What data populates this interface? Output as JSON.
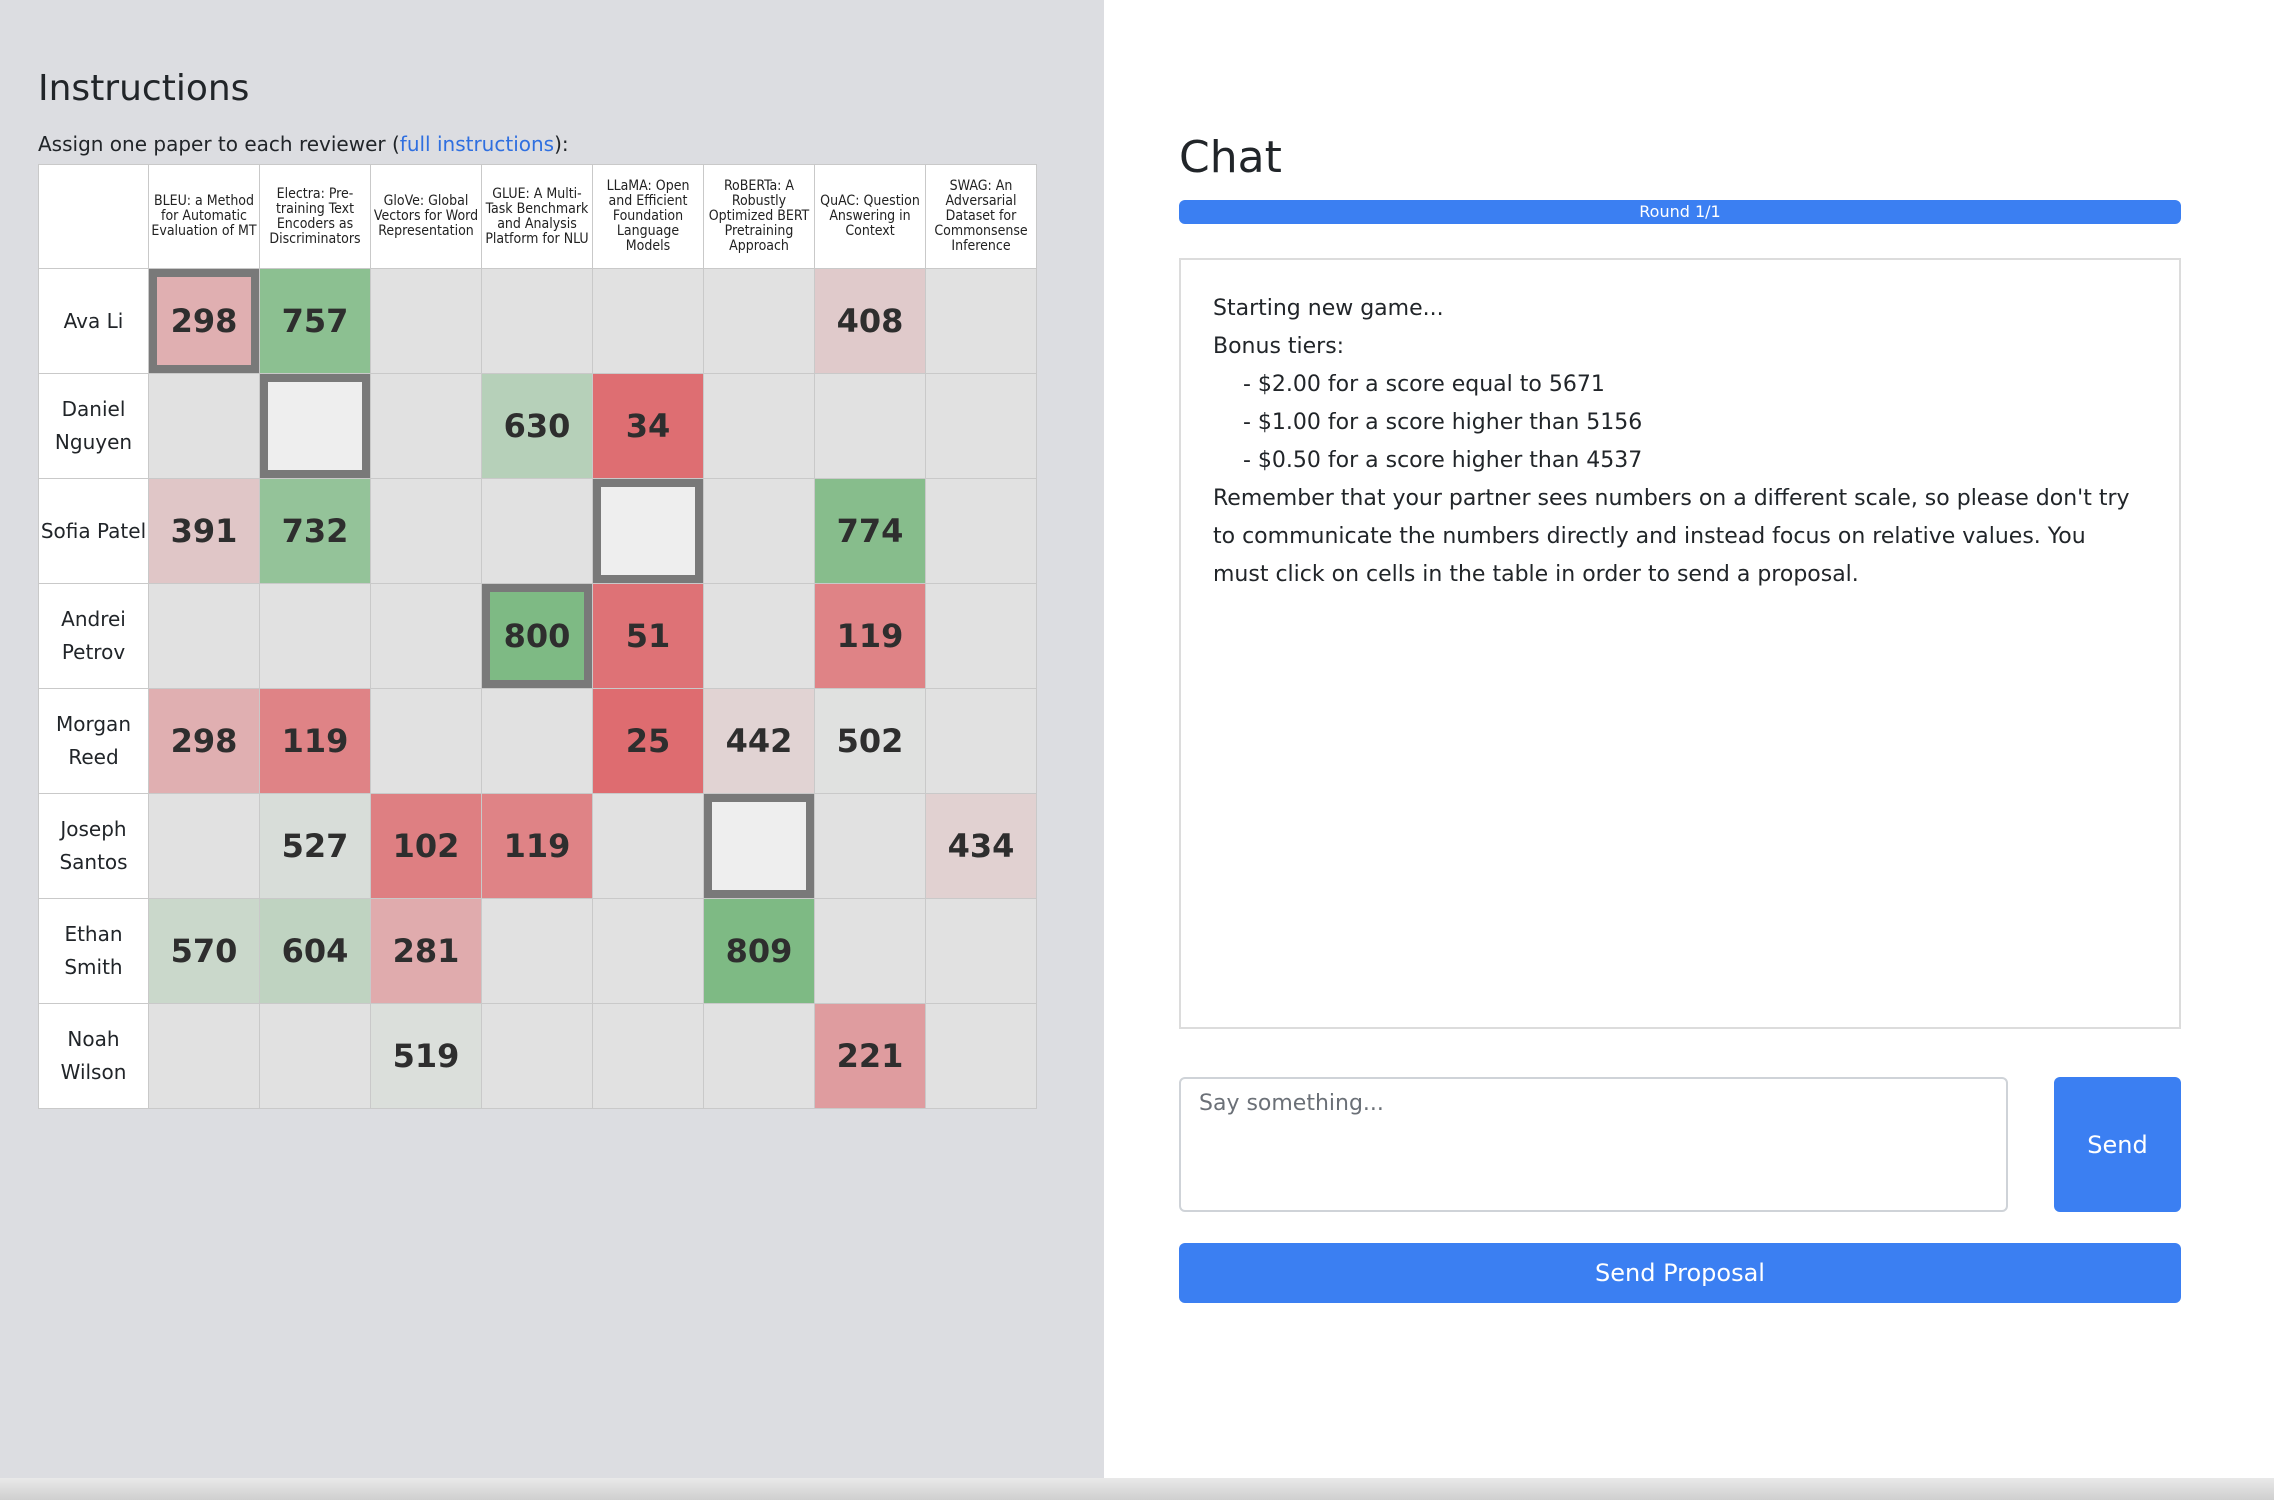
{
  "instructions": {
    "title": "Instructions",
    "assign_text_before": "Assign one paper to each reviewer (",
    "link_text": "full instructions",
    "assign_text_after": "):"
  },
  "papers": [
    "BLEU: a Method for Automatic Evaluation of MT",
    "Electra: Pre-training Text Encoders as Discriminators",
    "GloVe: Global Vectors for Word Representation",
    "GLUE: A Multi-Task Benchmark and Analysis Platform for NLU",
    "LLaMA: Open and Efficient Foundation Language Models",
    "RoBERTa: A Robustly Optimized BERT Pretraining Approach",
    "QuAC: Question Answering in Context",
    "SWAG: An Adversarial Dataset for Commonsense Inference"
  ],
  "reviewers": [
    {
      "name": "Ava Li",
      "scores": [
        298,
        757,
        null,
        null,
        null,
        null,
        408,
        null
      ],
      "selected_col": 0
    },
    {
      "name": "Daniel Nguyen",
      "scores": [
        null,
        null,
        null,
        630,
        34,
        null,
        null,
        null
      ],
      "selected_col": 1
    },
    {
      "name": "Sofia Patel",
      "scores": [
        391,
        732,
        null,
        null,
        null,
        null,
        774,
        null
      ],
      "selected_col": 4
    },
    {
      "name": "Andrei Petrov",
      "scores": [
        null,
        null,
        null,
        800,
        51,
        null,
        119,
        null
      ],
      "selected_col": 3
    },
    {
      "name": "Morgan Reed",
      "scores": [
        298,
        119,
        null,
        null,
        25,
        442,
        502,
        null
      ],
      "selected_col": null
    },
    {
      "name": "Joseph Santos",
      "scores": [
        null,
        527,
        102,
        119,
        null,
        null,
        null,
        434
      ],
      "selected_col": 5
    },
    {
      "name": "Ethan Smith",
      "scores": [
        570,
        604,
        281,
        null,
        null,
        809,
        null,
        null
      ],
      "selected_col": null
    },
    {
      "name": "Noah Wilson",
      "scores": [
        null,
        null,
        519,
        null,
        null,
        null,
        221,
        null
      ],
      "selected_col": null
    }
  ],
  "chat": {
    "title": "Chat",
    "round_label": "Round 1/1",
    "messages": {
      "line1": "Starting new game...",
      "line2": "Bonus tiers:",
      "tier1": "- $2.00 for a score equal to 5671",
      "tier2": "- $1.00 for a score higher than 5156",
      "tier3": "- $0.50 for a score higher than 4537",
      "note": "Remember that your partner sees numbers on a different scale, so please don't try to communicate the numbers directly and instead focus on relative values. You must click on cells in the table in order to send a proposal."
    },
    "input_placeholder": "Say something...",
    "input_value": "",
    "send_label": "Send",
    "proposal_label": "Send Proposal"
  }
}
